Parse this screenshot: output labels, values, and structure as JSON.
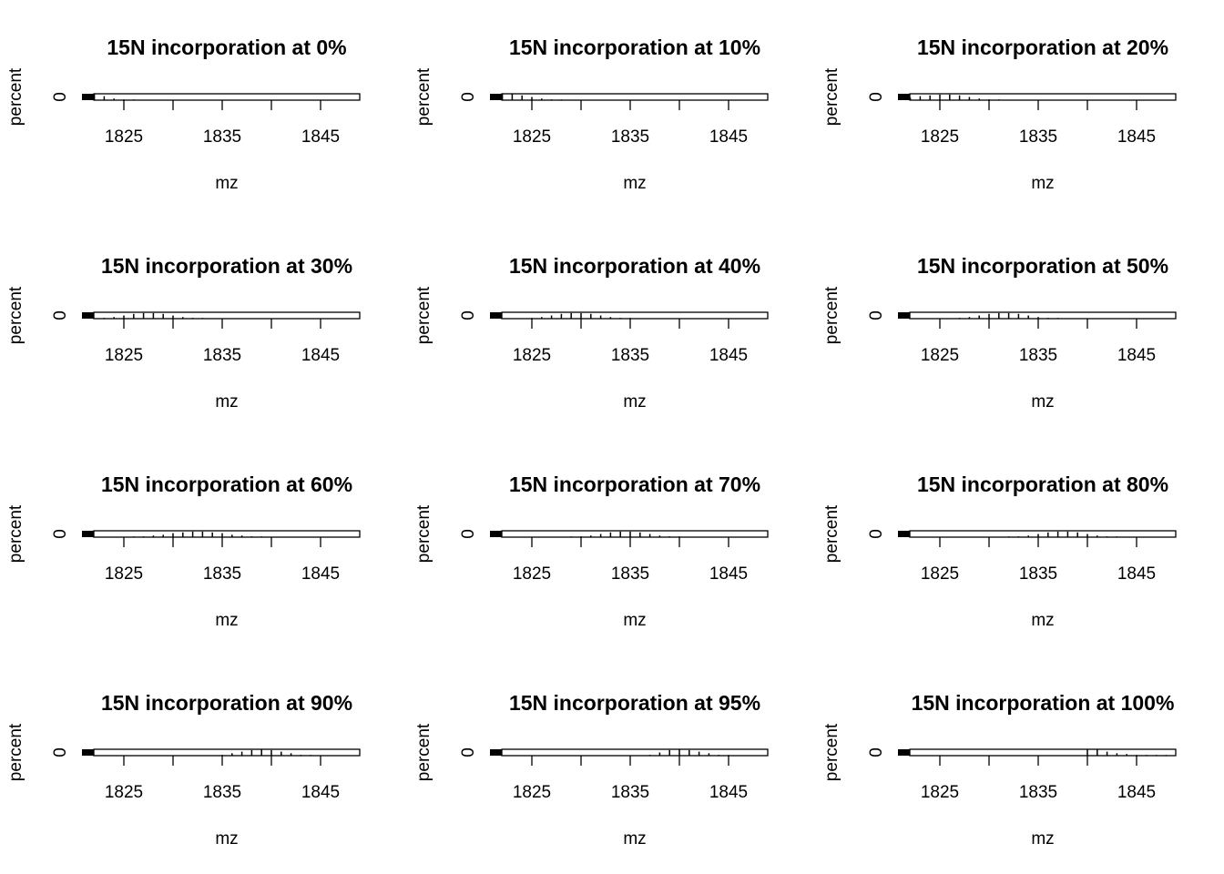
{
  "chart_data": {
    "type": "bar",
    "layout": "grid of 12 small multiples, 4 rows x 3 columns",
    "xlabel": "mz",
    "ylabel": "percent",
    "x_ticks": [
      1825,
      1835,
      1845
    ],
    "y_ticks": [
      0
    ],
    "xlim": [
      1816,
      1849
    ],
    "ylim": [
      0,
      1
    ],
    "grid": false,
    "legend": "none",
    "panels": [
      {
        "title": "15N incorporation at 0%",
        "mz": [
          1822,
          1823,
          1824,
          1825,
          1826
        ],
        "percent": [
          0.08,
          0.05,
          0.02,
          0.01,
          0.005
        ]
      },
      {
        "title": "15N incorporation at 10%",
        "mz": [
          1822,
          1823,
          1824,
          1825,
          1826,
          1827,
          1828
        ],
        "percent": [
          0.08,
          0.08,
          0.06,
          0.04,
          0.02,
          0.01,
          0.005
        ]
      },
      {
        "title": "15N incorporation at 20%",
        "mz": [
          1822,
          1823,
          1824,
          1825,
          1826,
          1827,
          1828,
          1829,
          1830,
          1831
        ],
        "percent": [
          0.03,
          0.05,
          0.06,
          0.07,
          0.07,
          0.06,
          0.04,
          0.02,
          0.01,
          0.005
        ]
      },
      {
        "title": "15N incorporation at 30%",
        "mz": [
          1823,
          1824,
          1825,
          1826,
          1827,
          1828,
          1829,
          1830,
          1831,
          1832,
          1833
        ],
        "percent": [
          0.01,
          0.02,
          0.04,
          0.06,
          0.07,
          0.07,
          0.06,
          0.04,
          0.02,
          0.01,
          0.005
        ]
      },
      {
        "title": "15N incorporation at 40%",
        "mz": [
          1825,
          1826,
          1827,
          1828,
          1829,
          1830,
          1831,
          1832,
          1833,
          1834,
          1835
        ],
        "percent": [
          0.01,
          0.02,
          0.04,
          0.06,
          0.07,
          0.07,
          0.06,
          0.04,
          0.02,
          0.01,
          0.005
        ]
      },
      {
        "title": "15N incorporation at 50%",
        "mz": [
          1827,
          1828,
          1829,
          1830,
          1831,
          1832,
          1833,
          1834,
          1835,
          1836,
          1837
        ],
        "percent": [
          0.01,
          0.02,
          0.04,
          0.06,
          0.07,
          0.07,
          0.06,
          0.04,
          0.02,
          0.01,
          0.005
        ]
      },
      {
        "title": "15N incorporation at 60%",
        "mz": [
          1826,
          1827,
          1828,
          1829,
          1830,
          1831,
          1832,
          1833,
          1834,
          1835,
          1836,
          1837,
          1838,
          1839
        ],
        "percent": [
          0.005,
          0.01,
          0.02,
          0.03,
          0.05,
          0.06,
          0.07,
          0.07,
          0.06,
          0.05,
          0.03,
          0.02,
          0.01,
          0.005
        ]
      },
      {
        "title": "15N incorporation at 70%",
        "mz": [
          1829,
          1830,
          1831,
          1832,
          1833,
          1834,
          1835,
          1836,
          1837,
          1838,
          1839,
          1840
        ],
        "percent": [
          0.005,
          0.01,
          0.02,
          0.04,
          0.06,
          0.07,
          0.07,
          0.06,
          0.04,
          0.02,
          0.01,
          0.005
        ]
      },
      {
        "title": "15N incorporation at 80%",
        "mz": [
          1832,
          1833,
          1834,
          1835,
          1836,
          1837,
          1838,
          1839,
          1840,
          1841,
          1842,
          1843
        ],
        "percent": [
          0.005,
          0.01,
          0.02,
          0.04,
          0.06,
          0.07,
          0.07,
          0.06,
          0.04,
          0.02,
          0.01,
          0.005
        ]
      },
      {
        "title": "15N incorporation at 90%",
        "mz": [
          1835,
          1836,
          1837,
          1838,
          1839,
          1840,
          1841,
          1842,
          1843,
          1844
        ],
        "percent": [
          0.01,
          0.03,
          0.05,
          0.07,
          0.08,
          0.07,
          0.05,
          0.03,
          0.01,
          0.005
        ]
      },
      {
        "title": "15N incorporation at 95%",
        "mz": [
          1837,
          1838,
          1839,
          1840,
          1841,
          1842,
          1843,
          1844,
          1845
        ],
        "percent": [
          0.01,
          0.04,
          0.07,
          0.08,
          0.07,
          0.05,
          0.03,
          0.01,
          0.005
        ]
      },
      {
        "title": "15N incorporation at 100%",
        "mz": [
          1840,
          1841,
          1842,
          1843,
          1844,
          1845,
          1846,
          1847,
          1848
        ],
        "percent": [
          0.08,
          0.08,
          0.05,
          0.03,
          0.02,
          0.01,
          0.005,
          0.003,
          0.002
        ]
      }
    ]
  }
}
